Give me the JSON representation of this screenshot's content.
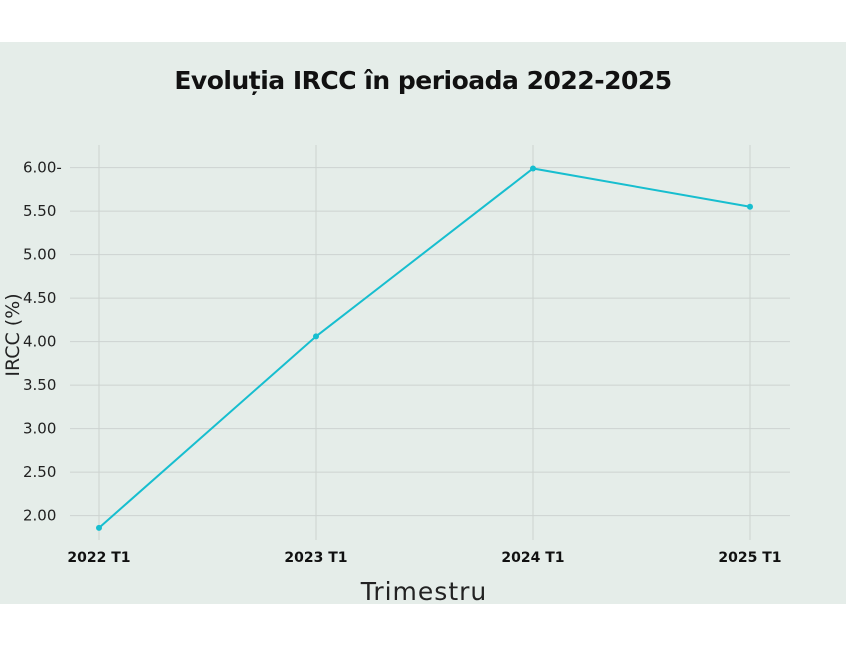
{
  "chart_data": {
    "type": "line",
    "title": "Evoluția IRCC în perioada 2022-2025",
    "xlabel": "Trimestru",
    "ylabel": "IRCC (%)",
    "categories": [
      "2022 T1",
      "2023 T1",
      "2024 T1",
      "2025 T1"
    ],
    "series": [
      {
        "values": [
          1.86,
          4.06,
          5.99,
          5.55
        ]
      }
    ],
    "y_ticks": [
      "2.00",
      "2.50",
      "3.00",
      "3.50",
      "4.00",
      "4.50",
      "5.00",
      "5.50",
      "6.00-"
    ],
    "y_tick_values": [
      2.0,
      2.5,
      3.0,
      3.5,
      4.0,
      4.5,
      5.0,
      5.5,
      6.0
    ],
    "ylim": [
      1.72,
      6.26
    ],
    "grid": true,
    "line_color": "#17becf"
  }
}
